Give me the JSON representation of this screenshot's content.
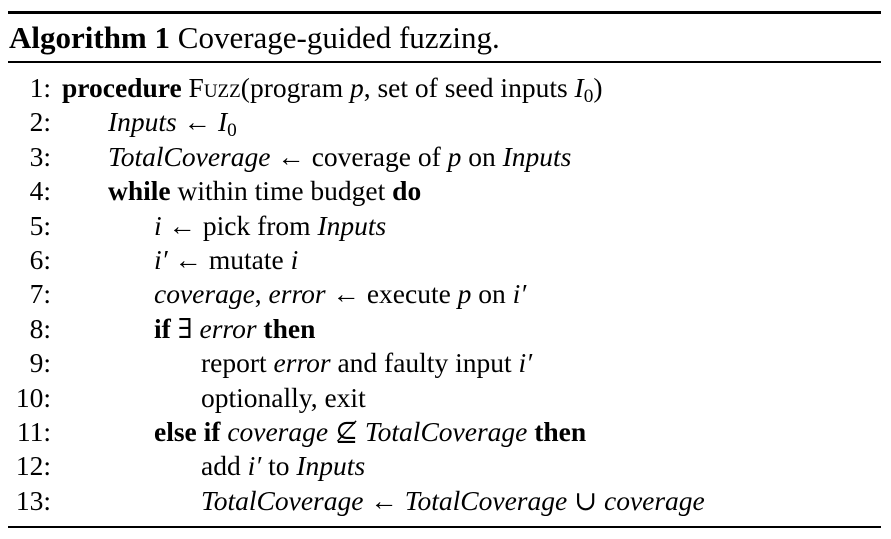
{
  "algorithm": {
    "label": "Algorithm 1",
    "title": "Coverage-guided fuzzing.",
    "lines": [
      {
        "num": "1:",
        "parts": [
          {
            "t": "procedure",
            "s": "kw"
          },
          {
            "t": " "
          },
          {
            "t": "Fuzz",
            "s": "sc"
          },
          {
            "t": "(program "
          },
          {
            "t": "p",
            "s": "it"
          },
          {
            "t": ", set of seed inputs "
          },
          {
            "t": "I",
            "s": "it"
          },
          {
            "t": "0",
            "s": "sub"
          },
          {
            "t": ")"
          }
        ]
      },
      {
        "num": "2:",
        "parts": [
          {
            "t": "Inputs",
            "s": "it"
          },
          {
            "t": " ← "
          },
          {
            "t": "I",
            "s": "it"
          },
          {
            "t": "0",
            "s": "sub"
          }
        ]
      },
      {
        "num": "3:",
        "parts": [
          {
            "t": "TotalCoverage",
            "s": "it"
          },
          {
            "t": " ← coverage of "
          },
          {
            "t": "p",
            "s": "it"
          },
          {
            "t": " on "
          },
          {
            "t": "Inputs",
            "s": "it"
          }
        ]
      },
      {
        "num": "4:",
        "parts": [
          {
            "t": "while",
            "s": "kw"
          },
          {
            "t": " within time budget "
          },
          {
            "t": "do",
            "s": "kw"
          }
        ]
      },
      {
        "num": "5:",
        "parts": [
          {
            "t": "i",
            "s": "it"
          },
          {
            "t": " ← pick from "
          },
          {
            "t": "Inputs",
            "s": "it"
          }
        ]
      },
      {
        "num": "6:",
        "parts": [
          {
            "t": "i′",
            "s": "it"
          },
          {
            "t": " ← mutate "
          },
          {
            "t": "i",
            "s": "it"
          }
        ]
      },
      {
        "num": "7:",
        "parts": [
          {
            "t": "coverage",
            "s": "it"
          },
          {
            "t": ", "
          },
          {
            "t": "error",
            "s": "it"
          },
          {
            "t": " ← execute "
          },
          {
            "t": "p",
            "s": "it"
          },
          {
            "t": " on "
          },
          {
            "t": "i′",
            "s": "it"
          }
        ]
      },
      {
        "num": "8:",
        "parts": [
          {
            "t": "if",
            "s": "kw"
          },
          {
            "t": " ∃ "
          },
          {
            "t": "error",
            "s": "it"
          },
          {
            "t": " "
          },
          {
            "t": "then",
            "s": "kw"
          }
        ]
      },
      {
        "num": "9:",
        "parts": [
          {
            "t": "report "
          },
          {
            "t": "error",
            "s": "it"
          },
          {
            "t": " and faulty input "
          },
          {
            "t": "i′",
            "s": "it"
          }
        ]
      },
      {
        "num": "10:",
        "parts": [
          {
            "t": "optionally, exit"
          }
        ]
      },
      {
        "num": "11:",
        "parts": [
          {
            "t": "else if",
            "s": "kw"
          },
          {
            "t": " "
          },
          {
            "t": "coverage",
            "s": "it"
          },
          {
            "t": " ⊈ "
          },
          {
            "t": "TotalCoverage",
            "s": "it"
          },
          {
            "t": " "
          },
          {
            "t": "then",
            "s": "kw"
          }
        ]
      },
      {
        "num": "12:",
        "parts": [
          {
            "t": "add "
          },
          {
            "t": "i′",
            "s": "it"
          },
          {
            "t": " to "
          },
          {
            "t": "Inputs",
            "s": "it"
          }
        ]
      },
      {
        "num": "13:",
        "parts": [
          {
            "t": "TotalCoverage",
            "s": "it"
          },
          {
            "t": " ← "
          },
          {
            "t": "TotalCoverage",
            "s": "it"
          },
          {
            "t": " ∪ "
          },
          {
            "t": "coverage",
            "s": "it"
          }
        ]
      }
    ]
  }
}
